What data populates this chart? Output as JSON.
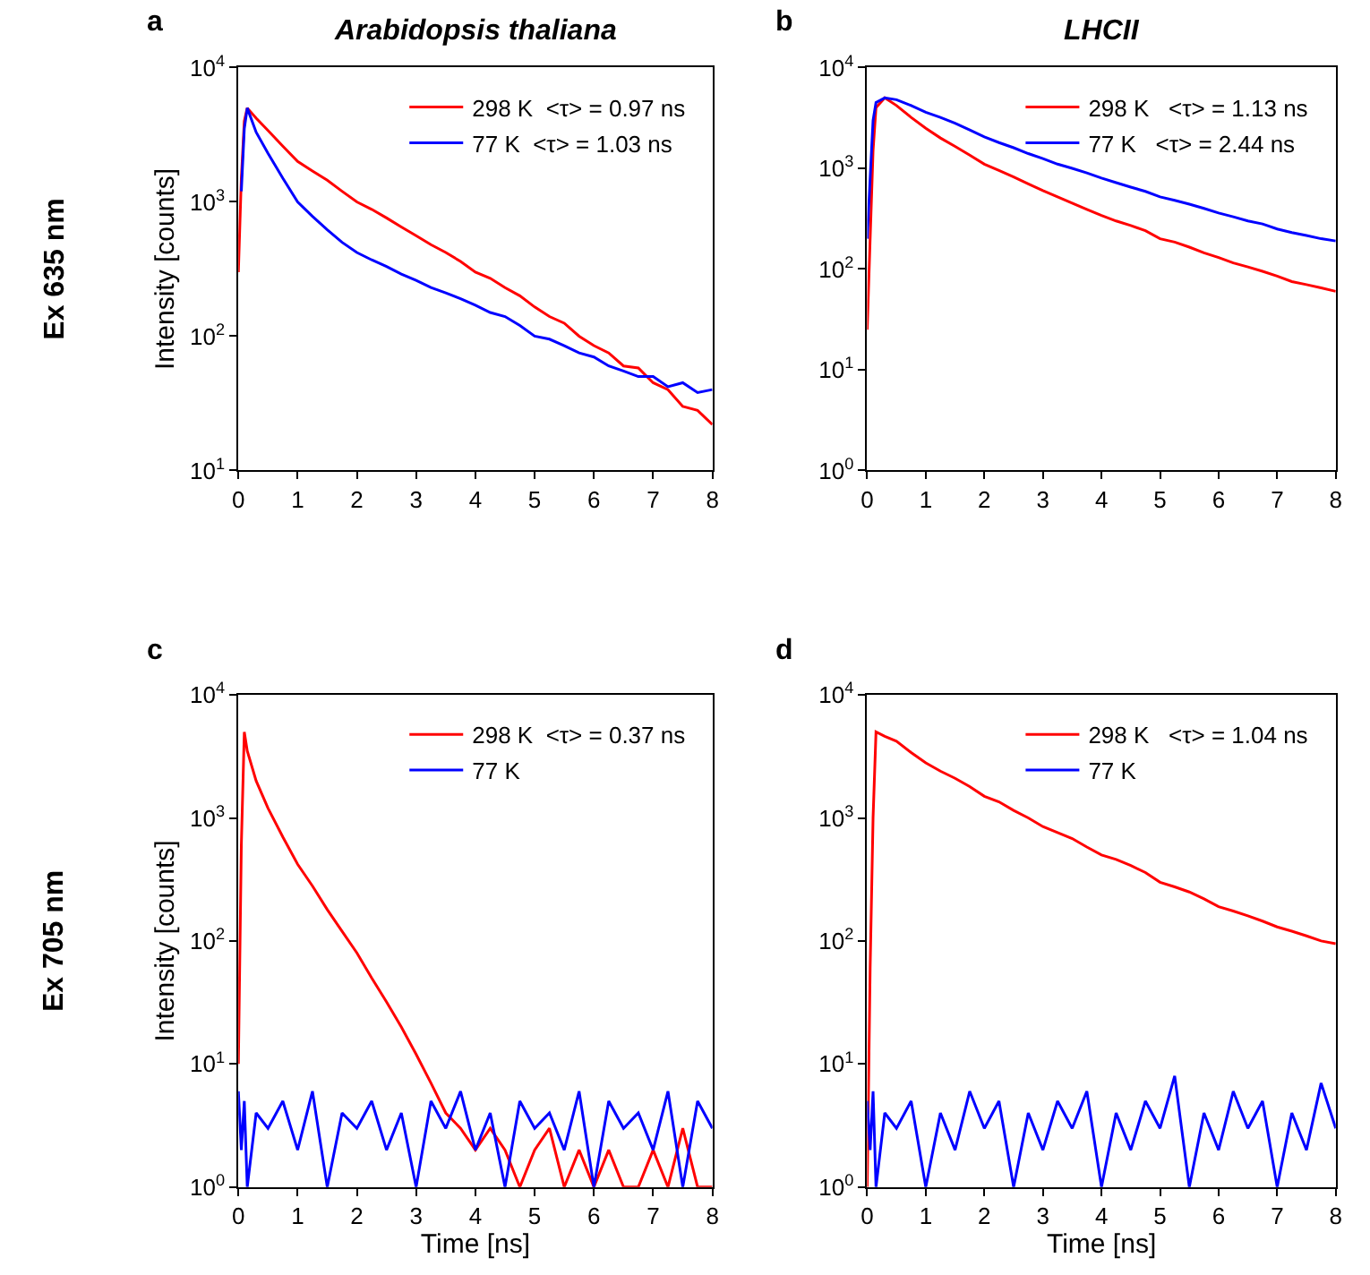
{
  "chart_data": [
    {
      "type": "line",
      "title": "a",
      "annotations": [
        "Arabidopsis thaliana",
        "Ex 635 nm"
      ],
      "ylabel": "Intensity [counts]",
      "log": "y",
      "legend": "top right",
      "x": [
        0,
        0.05,
        0.1,
        0.15,
        0.3,
        0.5,
        0.75,
        1,
        1.25,
        1.5,
        1.75,
        2,
        2.25,
        2.5,
        2.75,
        3,
        3.25,
        3.5,
        3.75,
        4,
        4.25,
        4.5,
        4.75,
        5,
        5.25,
        5.5,
        5.75,
        6,
        6.25,
        6.5,
        6.75,
        7,
        7.25,
        7.5,
        7.75,
        8
      ],
      "xlim": [
        0,
        8
      ],
      "xticks": [
        0,
        1,
        2,
        3,
        4,
        5,
        6,
        7,
        8
      ],
      "ylim": [
        10,
        10000
      ],
      "yticks": [
        {
          "value": 10,
          "label": "10$^{1}$"
        },
        {
          "value": 100,
          "label": "10$^{2}$"
        },
        {
          "value": 1000,
          "label": "10$^{3}$"
        },
        {
          "value": 10000,
          "label": "10$^{4}$"
        }
      ],
      "series": [
        {
          "name": "298 K  <τ> = 0.97 ns",
          "color": "#ff0000",
          "values": [
            300,
            1500,
            4000,
            5000,
            4200,
            3400,
            2600,
            2000,
            1700,
            1450,
            1200,
            1000,
            880,
            760,
            650,
            560,
            480,
            420,
            360,
            300,
            270,
            230,
            200,
            165,
            140,
            125,
            100,
            85,
            75,
            60,
            58,
            45,
            40,
            30,
            28,
            22
          ]
        },
        {
          "name": "77 K  <τ> = 1.03 ns",
          "color": "#0000ff",
          "values": [
            null,
            1200,
            3500,
            5000,
            3300,
            2300,
            1500,
            1000,
            780,
            620,
            500,
            420,
            370,
            330,
            290,
            260,
            230,
            210,
            190,
            170,
            150,
            140,
            120,
            100,
            95,
            85,
            75,
            70,
            60,
            55,
            50,
            50,
            42,
            45,
            38,
            40
          ]
        }
      ]
    },
    {
      "type": "line",
      "title": "b",
      "annotations": [
        "LHCII"
      ],
      "log": "y",
      "legend": "top right",
      "x": [
        0,
        0.05,
        0.1,
        0.15,
        0.3,
        0.5,
        0.75,
        1,
        1.25,
        1.5,
        1.75,
        2,
        2.25,
        2.5,
        2.75,
        3,
        3.25,
        3.5,
        3.75,
        4,
        4.25,
        4.5,
        4.75,
        5,
        5.25,
        5.5,
        5.75,
        6,
        6.25,
        6.5,
        6.75,
        7,
        7.25,
        7.5,
        7.75,
        8
      ],
      "xlim": [
        0,
        8
      ],
      "xticks": [
        0,
        1,
        2,
        3,
        4,
        5,
        6,
        7,
        8
      ],
      "ylim": [
        1,
        10000
      ],
      "yticks": [
        {
          "value": 1,
          "label": "10$^{0}$"
        },
        {
          "value": 10,
          "label": "10$^{1}$"
        },
        {
          "value": 100,
          "label": "10$^{2}$"
        },
        {
          "value": 1000,
          "label": "10$^{3}$"
        },
        {
          "value": 10000,
          "label": "10$^{4}$"
        }
      ],
      "series": [
        {
          "name": "298 K   <τ> = 1.13 ns",
          "color": "#ff0000",
          "values": [
            25,
            200,
            1500,
            4000,
            5000,
            4200,
            3200,
            2500,
            2000,
            1650,
            1350,
            1100,
            950,
            820,
            700,
            600,
            520,
            450,
            390,
            340,
            300,
            270,
            240,
            200,
            185,
            165,
            145,
            130,
            115,
            105,
            95,
            85,
            75,
            70,
            65,
            60
          ]
        },
        {
          "name": "77 K   <τ> = 2.44 ns",
          "color": "#0000ff",
          "values": [
            200,
            800,
            3000,
            4500,
            5000,
            4800,
            4200,
            3600,
            3200,
            2800,
            2400,
            2050,
            1800,
            1600,
            1400,
            1250,
            1100,
            1000,
            900,
            800,
            720,
            650,
            590,
            520,
            480,
            440,
            400,
            360,
            330,
            300,
            280,
            250,
            230,
            215,
            200,
            190
          ]
        }
      ]
    },
    {
      "type": "line",
      "title": "c",
      "annotations": [
        "Ex 705 nm"
      ],
      "xlabel": "Time [ns]",
      "ylabel": "Intensity [counts]",
      "log": "y",
      "legend": "top right",
      "x": [
        0,
        0.05,
        0.1,
        0.15,
        0.3,
        0.5,
        0.75,
        1,
        1.25,
        1.5,
        1.75,
        2,
        2.25,
        2.5,
        2.75,
        3,
        3.25,
        3.5,
        3.75,
        4,
        4.25,
        4.5,
        4.75,
        5,
        5.25,
        5.5,
        5.75,
        6,
        6.25,
        6.5,
        6.75,
        7,
        7.25,
        7.5,
        7.75,
        8
      ],
      "xlim": [
        0,
        8
      ],
      "xticks": [
        0,
        1,
        2,
        3,
        4,
        5,
        6,
        7,
        8
      ],
      "ylim": [
        1,
        10000
      ],
      "yticks": [
        {
          "value": 1,
          "label": "10$^{0}$"
        },
        {
          "value": 10,
          "label": "10$^{1}$"
        },
        {
          "value": 100,
          "label": "10$^{2}$"
        },
        {
          "value": 1000,
          "label": "10$^{3}$"
        },
        {
          "value": 10000,
          "label": "10$^{4}$"
        }
      ],
      "series": [
        {
          "name": "298 K  <τ> = 0.37 ns",
          "color": "#ff0000",
          "values": [
            10,
            600,
            5000,
            3500,
            2000,
            1200,
            700,
            420,
            280,
            180,
            120,
            80,
            50,
            32,
            20,
            12,
            7,
            4,
            3,
            2,
            3,
            2,
            1,
            2,
            3,
            1,
            2,
            1,
            2,
            1,
            1,
            2,
            1,
            3,
            1,
            1
          ]
        },
        {
          "name": "77 K",
          "color": "#0000ff",
          "values": [
            6,
            2,
            5,
            1,
            4,
            3,
            5,
            2,
            6,
            1,
            4,
            3,
            5,
            2,
            4,
            1,
            5,
            3,
            6,
            2,
            4,
            1,
            5,
            3,
            4,
            2,
            6,
            1,
            5,
            3,
            4,
            2,
            6,
            1,
            5,
            3
          ]
        }
      ]
    },
    {
      "type": "line",
      "title": "d",
      "xlabel": "Time [ns]",
      "log": "y",
      "legend": "top right",
      "x": [
        0,
        0.05,
        0.1,
        0.15,
        0.3,
        0.5,
        0.75,
        1,
        1.25,
        1.5,
        1.75,
        2,
        2.25,
        2.5,
        2.75,
        3,
        3.25,
        3.5,
        3.75,
        4,
        4.25,
        4.5,
        4.75,
        5,
        5.25,
        5.5,
        5.75,
        6,
        6.25,
        6.5,
        6.75,
        7,
        7.25,
        7.5,
        7.75,
        8
      ],
      "xlim": [
        0,
        8
      ],
      "xticks": [
        0,
        1,
        2,
        3,
        4,
        5,
        6,
        7,
        8
      ],
      "ylim": [
        1,
        10000
      ],
      "yticks": [
        {
          "value": 1,
          "label": "10$^{0}$"
        },
        {
          "value": 10,
          "label": "10$^{1}$"
        },
        {
          "value": 100,
          "label": "10$^{2}$"
        },
        {
          "value": 1000,
          "label": "10$^{3}$"
        },
        {
          "value": 10000,
          "label": "10$^{4}$"
        }
      ],
      "series": [
        {
          "name": "298 K   <τ> = 1.04 ns",
          "color": "#ff0000",
          "values": [
            1,
            60,
            1000,
            5000,
            4600,
            4200,
            3400,
            2800,
            2400,
            2100,
            1800,
            1500,
            1350,
            1150,
            1000,
            850,
            760,
            680,
            580,
            500,
            460,
            410,
            360,
            300,
            275,
            250,
            220,
            190,
            175,
            160,
            145,
            130,
            120,
            110,
            100,
            95
          ]
        },
        {
          "name": "77 K",
          "color": "#0000ff",
          "values": [
            5,
            2,
            6,
            1,
            4,
            3,
            5,
            1,
            4,
            2,
            6,
            3,
            5,
            1,
            4,
            2,
            5,
            3,
            6,
            1,
            4,
            2,
            5,
            3,
            8,
            1,
            4,
            2,
            6,
            3,
            5,
            1,
            4,
            2,
            7,
            3
          ]
        }
      ]
    }
  ]
}
